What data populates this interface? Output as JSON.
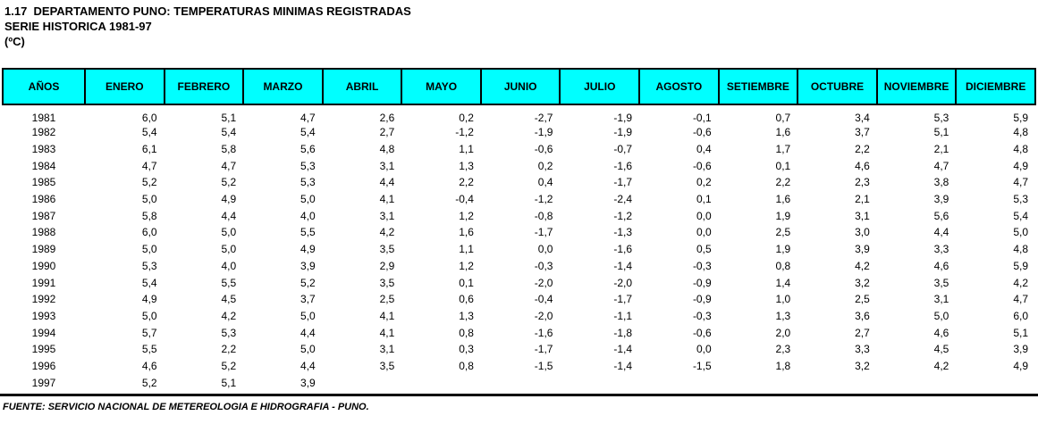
{
  "header": {
    "title": "1.17  DEPARTAMENTO PUNO: TEMPERATURAS MINIMAS REGISTRADAS",
    "subtitle": "SERIE HISTORICA 1981-97",
    "unit": "(ºC)"
  },
  "table": {
    "columns": [
      "AÑOS",
      "ENERO",
      "FEBRERO",
      "MARZO",
      "ABRIL",
      "MAYO",
      "JUNIO",
      "JULIO",
      "AGOSTO",
      "SETIEMBRE",
      "OCTUBRE",
      "NOVIEMBRE",
      "DICIEMBRE"
    ],
    "rows": [
      {
        "year": "1981",
        "values": [
          "6,0",
          "5,1",
          "4,7",
          "2,6",
          "0,2",
          "-2,7",
          "-1,9",
          "-0,1",
          "0,7",
          "3,4",
          "5,3",
          "5,9"
        ]
      },
      {
        "year": "1982",
        "values": [
          "5,4",
          "5,4",
          "5,4",
          "2,7",
          "-1,2",
          "-1,9",
          "-1,9",
          "-0,6",
          "1,6",
          "3,7",
          "5,1",
          "4,8"
        ]
      },
      {
        "year": "1983",
        "values": [
          "6,1",
          "5,8",
          "5,6",
          "4,8",
          "1,1",
          "-0,6",
          "-0,7",
          "0,4",
          "1,7",
          "2,2",
          "2,1",
          "4,8"
        ]
      },
      {
        "year": "1984",
        "values": [
          "4,7",
          "4,7",
          "5,3",
          "3,1",
          "1,3",
          "0,2",
          "-1,6",
          "-0,6",
          "0,1",
          "4,6",
          "4,7",
          "4,9"
        ]
      },
      {
        "year": "1985",
        "values": [
          "5,2",
          "5,2",
          "5,3",
          "4,4",
          "2,2",
          "0,4",
          "-1,7",
          "0,2",
          "2,2",
          "2,3",
          "3,8",
          "4,7"
        ]
      },
      {
        "year": "1986",
        "values": [
          "5,0",
          "4,9",
          "5,0",
          "4,1",
          "-0,4",
          "-1,2",
          "-2,4",
          "0,1",
          "1,6",
          "2,1",
          "3,9",
          "5,3"
        ]
      },
      {
        "year": "1987",
        "values": [
          "5,8",
          "4,4",
          "4,0",
          "3,1",
          "1,2",
          "-0,8",
          "-1,2",
          "0,0",
          "1,9",
          "3,1",
          "5,6",
          "5,4"
        ]
      },
      {
        "year": "1988",
        "values": [
          "6,0",
          "5,0",
          "5,5",
          "4,2",
          "1,6",
          "-1,7",
          "-1,3",
          "0,0",
          "2,5",
          "3,0",
          "4,4",
          "5,0"
        ]
      },
      {
        "year": "1989",
        "values": [
          "5,0",
          "5,0",
          "4,9",
          "3,5",
          "1,1",
          "0,0",
          "-1,6",
          "0,5",
          "1,9",
          "3,9",
          "3,3",
          "4,8"
        ]
      },
      {
        "year": "1990",
        "values": [
          "5,3",
          "4,0",
          "3,9",
          "2,9",
          "1,2",
          "-0,3",
          "-1,4",
          "-0,3",
          "0,8",
          "4,2",
          "4,6",
          "5,9"
        ]
      },
      {
        "year": "1991",
        "values": [
          "5,4",
          "5,5",
          "5,2",
          "3,5",
          "0,1",
          "-2,0",
          "-2,0",
          "-0,9",
          "1,4",
          "3,2",
          "3,5",
          "4,2"
        ]
      },
      {
        "year": "1992",
        "values": [
          "4,9",
          "4,5",
          "3,7",
          "2,5",
          "0,6",
          "-0,4",
          "-1,7",
          "-0,9",
          "1,0",
          "2,5",
          "3,1",
          "4,7"
        ]
      },
      {
        "year": "1993",
        "values": [
          "5,0",
          "4,2",
          "5,0",
          "4,1",
          "1,3",
          "-2,0",
          "-1,1",
          "-0,3",
          "1,3",
          "3,6",
          "5,0",
          "6,0"
        ]
      },
      {
        "year": "1994",
        "values": [
          "5,7",
          "5,3",
          "4,4",
          "4,1",
          "0,8",
          "-1,6",
          "-1,8",
          "-0,6",
          "2,0",
          "2,7",
          "4,6",
          "5,1"
        ]
      },
      {
        "year": "1995",
        "values": [
          "5,5",
          "2,2",
          "5,0",
          "3,1",
          "0,3",
          "-1,7",
          "-1,4",
          "0,0",
          "2,3",
          "3,3",
          "4,5",
          "3,9"
        ]
      },
      {
        "year": "1996",
        "values": [
          "4,6",
          "5,2",
          "4,4",
          "3,5",
          "0,8",
          "-1,5",
          "-1,4",
          "-1,5",
          "1,8",
          "3,2",
          "4,2",
          "4,9"
        ]
      },
      {
        "year": "1997",
        "values": [
          "5,2",
          "5,1",
          "3,9",
          "",
          "",
          "",
          "",
          "",
          "",
          "",
          "",
          ""
        ]
      }
    ]
  },
  "footer": {
    "source": "FUENTE: SERVICIO NACIONAL DE METEREOLOGIA E HIDROGRAFIA - PUNO."
  },
  "colors": {
    "header_bg": "#00FFFF",
    "border": "#000000",
    "text": "#000000"
  }
}
